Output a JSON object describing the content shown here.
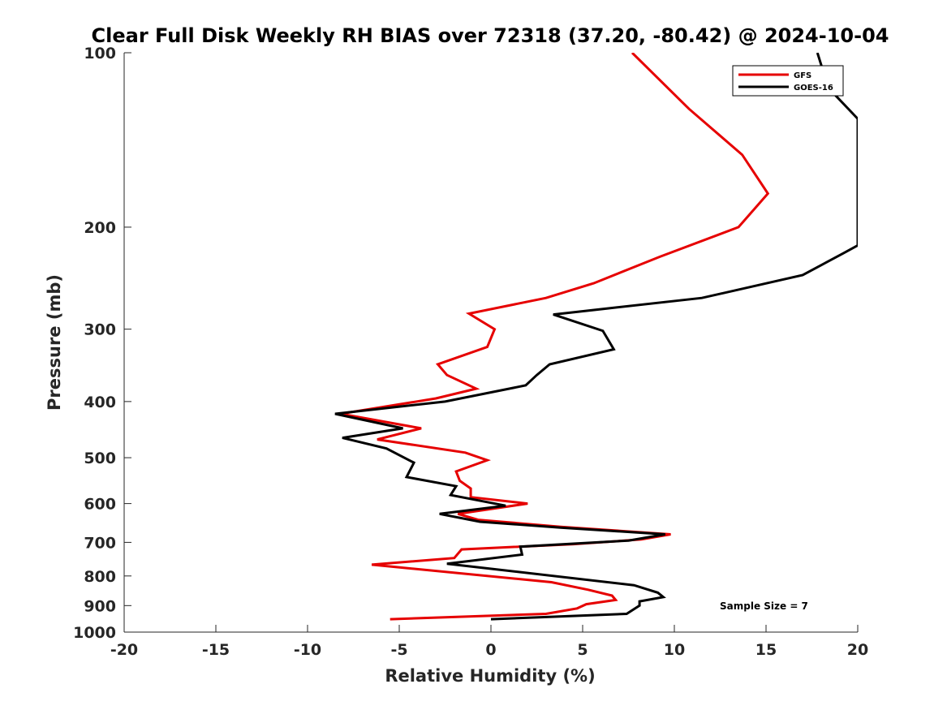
{
  "chart_data": {
    "type": "line",
    "title": "Clear Full Disk Weekly RH BIAS over 72318 (37.20, -80.42) @ 2024-10-04",
    "xlabel": "Relative Humidity (%)",
    "ylabel": "Pressure (mb)",
    "xlim": [
      -20,
      20
    ],
    "ylim": [
      100,
      1000
    ],
    "y_scale": "log",
    "y_reversed": true,
    "x_ticks": [
      "-20",
      "-15",
      "-10",
      "-5",
      "0",
      "5",
      "10",
      "15",
      "20"
    ],
    "y_ticks": [
      "100",
      "200",
      "300",
      "400",
      "500",
      "600",
      "700",
      "800",
      "900",
      "1000"
    ],
    "grid": false,
    "legend_position": "top-right",
    "annotation": "Sample Size = 7",
    "series": [
      {
        "name": "GFS",
        "color": "#e60000",
        "points": [
          [
            7.7,
            100
          ],
          [
            10.8,
            125
          ],
          [
            13.7,
            150
          ],
          [
            15.1,
            175
          ],
          [
            13.5,
            200
          ],
          [
            9.2,
            225
          ],
          [
            5.6,
            250
          ],
          [
            3.0,
            265
          ],
          [
            -1.2,
            282
          ],
          [
            0.2,
            300
          ],
          [
            -0.2,
            322
          ],
          [
            -2.9,
            345
          ],
          [
            -2.4,
            360
          ],
          [
            -0.8,
            380
          ],
          [
            -3.0,
            395
          ],
          [
            -8.2,
            420
          ],
          [
            -3.8,
            445
          ],
          [
            -6.2,
            465
          ],
          [
            -1.4,
            490
          ],
          [
            -0.2,
            505
          ],
          [
            -1.9,
            528
          ],
          [
            -1.7,
            548
          ],
          [
            -1.1,
            565
          ],
          [
            -1.1,
            585
          ],
          [
            2.0,
            600
          ],
          [
            -1.8,
            625
          ],
          [
            -0.7,
            640
          ],
          [
            3.8,
            658
          ],
          [
            9.8,
            678
          ],
          [
            8.2,
            692
          ],
          [
            4.5,
            705
          ],
          [
            -1.6,
            720
          ],
          [
            -2.0,
            745
          ],
          [
            -6.5,
            765
          ],
          [
            3.3,
            820
          ],
          [
            5.3,
            845
          ],
          [
            6.6,
            865
          ],
          [
            6.8,
            880
          ],
          [
            5.2,
            895
          ],
          [
            4.7,
            910
          ],
          [
            3.0,
            930
          ],
          [
            -5.5,
            950
          ]
        ]
      },
      {
        "name": "GOES-16",
        "color": "#000000",
        "points": [
          [
            17.8,
            100
          ],
          [
            18.4,
            115
          ],
          [
            20.0,
            130
          ],
          [
            20.0,
            215
          ],
          [
            19.2,
            222
          ],
          [
            17.0,
            242
          ],
          [
            11.5,
            265
          ],
          [
            3.4,
            283
          ],
          [
            6.1,
            302
          ],
          [
            6.7,
            325
          ],
          [
            3.2,
            345
          ],
          [
            2.5,
            360
          ],
          [
            1.9,
            375
          ],
          [
            -2.5,
            400
          ],
          [
            -8.5,
            420
          ],
          [
            -4.8,
            445
          ],
          [
            -8.1,
            462
          ],
          [
            -5.7,
            482
          ],
          [
            -4.2,
            510
          ],
          [
            -4.6,
            540
          ],
          [
            -1.9,
            560
          ],
          [
            -2.2,
            580
          ],
          [
            0.8,
            605
          ],
          [
            -2.8,
            625
          ],
          [
            -0.6,
            645
          ],
          [
            3.8,
            660
          ],
          [
            9.5,
            678
          ],
          [
            7.5,
            695
          ],
          [
            1.6,
            712
          ],
          [
            1.7,
            735
          ],
          [
            -2.4,
            762
          ],
          [
            7.8,
            830
          ],
          [
            9.1,
            855
          ],
          [
            9.4,
            870
          ],
          [
            8.1,
            885
          ],
          [
            8.1,
            900
          ],
          [
            7.4,
            930
          ],
          [
            0.0,
            950
          ]
        ]
      }
    ]
  }
}
